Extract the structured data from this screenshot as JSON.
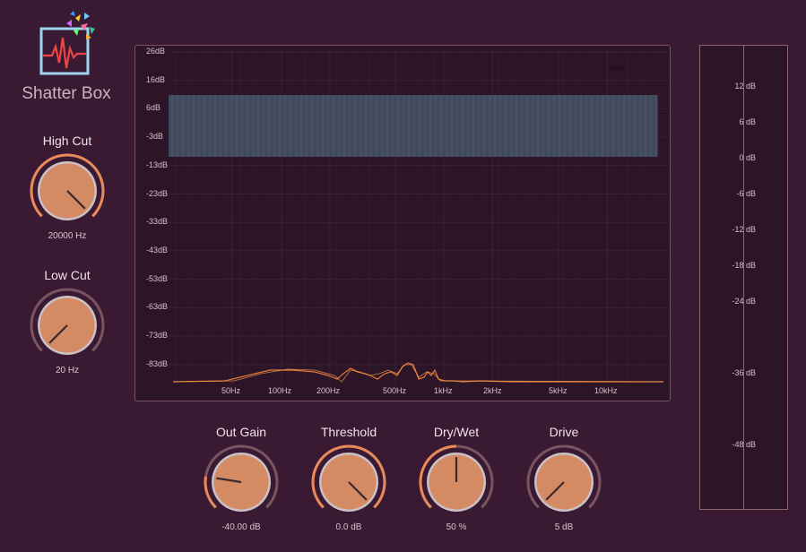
{
  "app": {
    "name": "Shatter Box"
  },
  "colors": {
    "background": "#3a1a33",
    "knob_fill": "#d48a62",
    "knob_ring_active": "#e88a5a",
    "knob_ring_inactive": "#7a5560",
    "spectrum_line": "#e8783a",
    "band_fill": "#3e4a5e"
  },
  "knobs": {
    "high_cut": {
      "label": "High Cut",
      "value": "20000 Hz",
      "level": 1.0
    },
    "low_cut": {
      "label": "Low Cut",
      "value": "20 Hz",
      "level": 0.0
    },
    "out_gain": {
      "label": "Out Gain",
      "value": "-40.00 dB",
      "level": 0.2
    },
    "threshold": {
      "label": "Threshold",
      "value": "0.0 dB",
      "level": 1.0
    },
    "dry_wet": {
      "label": "Dry/Wet",
      "value": "50 %",
      "level": 0.5
    },
    "drive": {
      "label": "Drive",
      "value": "5 dB",
      "level": 0.0
    }
  },
  "spectrum": {
    "y_labels": [
      "26dB",
      "16dB",
      "6dB",
      "-3dB",
      "-13dB",
      "-23dB",
      "-33dB",
      "-43dB",
      "-53dB",
      "-63dB",
      "-73dB",
      "-83dB"
    ],
    "x_labels": [
      "50Hz",
      "100Hz",
      "200Hz",
      "500Hz",
      "1kHz",
      "2kHz",
      "5kHz",
      "10kHz"
    ],
    "marker_label": "0dB"
  },
  "meter": {
    "labels": [
      "12 dB",
      "6 dB",
      "0 dB",
      "-6 dB",
      "-12 dB",
      "-18 dB",
      "-24 dB",
      "-36 dB",
      "-48 dB"
    ]
  }
}
